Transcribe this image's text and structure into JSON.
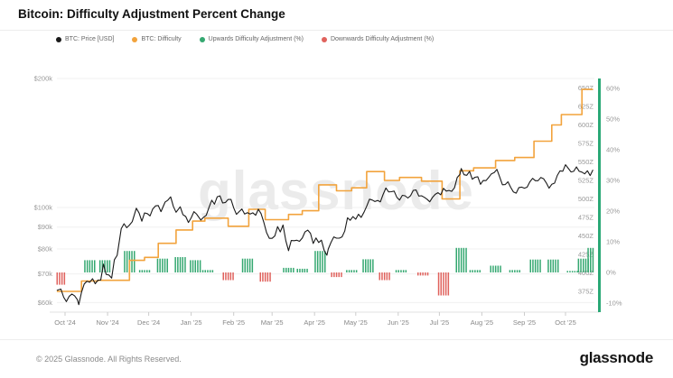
{
  "header": {
    "title": "Bitcoin: Difficulty Adjustment Percent Change"
  },
  "legend": {
    "items": [
      {
        "label": "BTC: Price [USD]",
        "color": "#1a1a1a"
      },
      {
        "label": "BTC: Difficulty",
        "color": "#f2a33c"
      },
      {
        "label": "Upwards Difficulty Adjustment (%)",
        "color": "#35a871"
      },
      {
        "label": "Downwards Difficulty Adjustment (%)",
        "color": "#e0625d"
      }
    ]
  },
  "watermark": "glassnode",
  "footer": {
    "copyright": "© 2025 Glassnode. All Rights Reserved.",
    "logo": "glassnode"
  },
  "chart_data": {
    "type": "line",
    "title": "Bitcoin: Difficulty Adjustment Percent Change",
    "x_axis": {
      "note": "days measured from 2024-10-01",
      "tick_labels": [
        "Oct '24",
        "Nov '24",
        "Dec '24",
        "Jan '25",
        "Feb '25",
        "Mar '25",
        "Apr '25",
        "May '25",
        "Jun '25",
        "Jul '25",
        "Aug '25",
        "Sep '25",
        "Oct '25"
      ],
      "tick_days": [
        0,
        31,
        61,
        92,
        123,
        151,
        182,
        212,
        243,
        273,
        304,
        335,
        365
      ]
    },
    "price_axis": {
      "side": "left",
      "scale": "log",
      "currency": "USD",
      "ticks": [
        {
          "value": 200000,
          "label": "$200k"
        },
        {
          "value": 100000,
          "label": "$100k"
        },
        {
          "value": 90000,
          "label": "$90k"
        },
        {
          "value": 80000,
          "label": "$80k"
        },
        {
          "value": 70000,
          "label": "$70k"
        },
        {
          "value": 60000,
          "label": "$60k"
        }
      ]
    },
    "difficulty_axis": {
      "side": "right-inner",
      "unit": "Z",
      "min": 375,
      "max": 650,
      "step": 25,
      "axis_line_color": "#2aa876",
      "label_suffix": "Z"
    },
    "percent_axis": {
      "side": "right-outer",
      "min": -10,
      "max": 60,
      "step": 10,
      "ticks": [
        60,
        50,
        40,
        30,
        20,
        10,
        0,
        -10
      ],
      "label_suffix": "%"
    },
    "series": [
      {
        "name": "BTC: Price [USD]",
        "type": "line",
        "color": "#1a1a1a",
        "points_day_priceK": [
          [
            -6,
            63.3
          ],
          [
            -3,
            63.8
          ],
          [
            -1,
            60.8
          ],
          [
            1,
            60.6
          ],
          [
            3,
            62.1
          ],
          [
            5,
            62.8
          ],
          [
            7,
            62.0
          ],
          [
            9,
            60.3
          ],
          [
            10,
            59.0
          ],
          [
            12,
            62.5
          ],
          [
            14,
            65.8
          ],
          [
            16,
            67.6
          ],
          [
            18,
            67.0
          ],
          [
            20,
            68.4
          ],
          [
            22,
            66.5
          ],
          [
            24,
            66.7
          ],
          [
            26,
            67.0
          ],
          [
            28,
            72.7
          ],
          [
            30,
            70.2
          ],
          [
            32,
            69.4
          ],
          [
            34,
            68.2
          ],
          [
            36,
            75.9
          ],
          [
            38,
            76.5
          ],
          [
            41,
            88.7
          ],
          [
            43,
            90.4
          ],
          [
            45,
            90.0
          ],
          [
            47,
            91.0
          ],
          [
            49,
            92.3
          ],
          [
            52,
            98.9
          ],
          [
            54,
            95.9
          ],
          [
            56,
            91.9
          ],
          [
            58,
            95.9
          ],
          [
            60,
            96.4
          ],
          [
            62,
            95.9
          ],
          [
            64,
            98.8
          ],
          [
            66,
            101.0
          ],
          [
            68,
            99.9
          ],
          [
            70,
            96.6
          ],
          [
            73,
            101.4
          ],
          [
            75,
            104.1
          ],
          [
            77,
            106.1
          ],
          [
            79,
            100.1
          ],
          [
            81,
            97.4
          ],
          [
            84,
            98.9
          ],
          [
            86,
            95.2
          ],
          [
            88,
            94.2
          ],
          [
            90,
            92.6
          ],
          [
            92,
            94.6
          ],
          [
            94,
            98.1
          ],
          [
            96,
            96.9
          ],
          [
            99,
            92.5
          ],
          [
            101,
            94.3
          ],
          [
            103,
            94.5
          ],
          [
            105,
            100.5
          ],
          [
            107,
            104.1
          ],
          [
            109,
            102.3
          ],
          [
            111,
            106.1
          ],
          [
            113,
            104.8
          ],
          [
            115,
            101.3
          ],
          [
            117,
            102.1
          ],
          [
            119,
            105.0
          ],
          [
            121,
            104.7
          ],
          [
            123,
            99.4
          ],
          [
            125,
            96.6
          ],
          [
            127,
            96.5
          ],
          [
            129,
            97.9
          ],
          [
            131,
            95.8
          ],
          [
            133,
            95.7
          ],
          [
            135,
            96.9
          ],
          [
            137,
            97.5
          ],
          [
            139,
            95.6
          ],
          [
            141,
            98.3
          ],
          [
            143,
            96.1
          ],
          [
            145,
            91.5
          ],
          [
            147,
            86.8
          ],
          [
            149,
            84.7
          ],
          [
            151,
            84.3
          ],
          [
            153,
            86.0
          ],
          [
            155,
            90.6
          ],
          [
            157,
            86.8
          ],
          [
            159,
            89.9
          ],
          [
            161,
            82.8
          ],
          [
            163,
            78.5
          ],
          [
            165,
            83.7
          ],
          [
            167,
            83.9
          ],
          [
            169,
            84.0
          ],
          [
            171,
            82.7
          ],
          [
            173,
            84.2
          ],
          [
            175,
            86.9
          ],
          [
            177,
            87.5
          ],
          [
            179,
            86.9
          ],
          [
            181,
            82.4
          ],
          [
            183,
            85.2
          ],
          [
            185,
            82.5
          ],
          [
            187,
            83.2
          ],
          [
            189,
            78.2
          ],
          [
            191,
            76.3
          ],
          [
            192,
            79.2
          ],
          [
            194,
            83.4
          ],
          [
            196,
            85.2
          ],
          [
            198,
            84.5
          ],
          [
            200,
            84.9
          ],
          [
            202,
            84.5
          ],
          [
            204,
            87.5
          ],
          [
            206,
            93.4
          ],
          [
            208,
            93.8
          ],
          [
            210,
            95.0
          ],
          [
            212,
            94.2
          ],
          [
            214,
            96.5
          ],
          [
            216,
            94.3
          ],
          [
            218,
            96.8
          ],
          [
            220,
            99.7
          ],
          [
            222,
            103.2
          ],
          [
            224,
            104.1
          ],
          [
            226,
            102.8
          ],
          [
            228,
            104.2
          ],
          [
            230,
            103.5
          ],
          [
            232,
            106.4
          ],
          [
            234,
            109.7
          ],
          [
            236,
            107.3
          ],
          [
            238,
            109.0
          ],
          [
            240,
            109.4
          ],
          [
            242,
            105.6
          ],
          [
            244,
            103.9
          ],
          [
            246,
            105.9
          ],
          [
            248,
            105.4
          ],
          [
            250,
            104.4
          ],
          [
            252,
            105.6
          ],
          [
            254,
            110.2
          ],
          [
            256,
            110.3
          ],
          [
            258,
            106.0
          ],
          [
            260,
            105.5
          ],
          [
            262,
            104.6
          ],
          [
            264,
            103.9
          ],
          [
            266,
            101.5
          ],
          [
            268,
            105.7
          ],
          [
            270,
            107.2
          ],
          [
            272,
            108.3
          ],
          [
            274,
            107.1
          ],
          [
            276,
            109.6
          ],
          [
            278,
            108.0
          ],
          [
            280,
            108.3
          ],
          [
            282,
            108.9
          ],
          [
            284,
            111.0
          ],
          [
            286,
            117.5
          ],
          [
            288,
            119.1
          ],
          [
            289,
            123.1
          ],
          [
            291,
            118.0
          ],
          [
            293,
            117.9
          ],
          [
            295,
            119.9
          ],
          [
            297,
            115.8
          ],
          [
            299,
            118.1
          ],
          [
            301,
            117.7
          ],
          [
            303,
            113.2
          ],
          [
            305,
            114.6
          ],
          [
            307,
            114.1
          ],
          [
            309,
            116.9
          ],
          [
            311,
            118.7
          ],
          [
            313,
            120.5
          ],
          [
            315,
            123.3
          ],
          [
            317,
            117.4
          ],
          [
            319,
            113.5
          ],
          [
            321,
            112.4
          ],
          [
            323,
            113.4
          ],
          [
            325,
            110.1
          ],
          [
            327,
            109.0
          ],
          [
            329,
            108.4
          ],
          [
            331,
            111.2
          ],
          [
            333,
            112.0
          ],
          [
            335,
            110.3
          ],
          [
            337,
            110.9
          ],
          [
            339,
            114.0
          ],
          [
            341,
            116.0
          ],
          [
            343,
            115.9
          ],
          [
            345,
            115.5
          ],
          [
            347,
            117.1
          ],
          [
            349,
            115.7
          ],
          [
            351,
            112.8
          ],
          [
            353,
            109.6
          ],
          [
            355,
            112.0
          ],
          [
            357,
            114.3
          ],
          [
            359,
            118.6
          ],
          [
            361,
            122.2
          ],
          [
            363,
            121.0
          ],
          [
            365,
            124.0
          ],
          [
            367,
            121.7
          ],
          [
            369,
            120.1
          ],
          [
            371,
            121.3
          ],
          [
            373,
            124.5
          ],
          [
            375,
            122.0
          ],
          [
            377,
            120.8
          ],
          [
            379,
            118.5
          ],
          [
            381,
            119.9
          ],
          [
            383,
            117.2
          ],
          [
            385,
            121.5
          ]
        ]
      },
      {
        "name": "BTC: Difficulty",
        "type": "step",
        "color": "#f2a33c",
        "points_day_Z": [
          [
            -6,
            375
          ],
          [
            12,
            389
          ],
          [
            24,
            390
          ],
          [
            47,
            417
          ],
          [
            58,
            421
          ],
          [
            68,
            440
          ],
          [
            81,
            458
          ],
          [
            93,
            470
          ],
          [
            102,
            474
          ],
          [
            119,
            463
          ],
          [
            134,
            486
          ],
          [
            146,
            472
          ],
          [
            163,
            479
          ],
          [
            173,
            484
          ],
          [
            185,
            519
          ],
          [
            198,
            511
          ],
          [
            209,
            515
          ],
          [
            220,
            537
          ],
          [
            233,
            525
          ],
          [
            244,
            529
          ],
          [
            260,
            524
          ],
          [
            275,
            500
          ],
          [
            288,
            538
          ],
          [
            298,
            542
          ],
          [
            314,
            552
          ],
          [
            328,
            556
          ],
          [
            342,
            578
          ],
          [
            355,
            600
          ],
          [
            362,
            614
          ],
          [
            377,
            648
          ],
          [
            385,
            648
          ]
        ]
      },
      {
        "name": "Upwards Difficulty Adjustment (%)",
        "type": "bar",
        "color": "#35a871",
        "direction": "up"
      },
      {
        "name": "Downwards Difficulty Adjustment (%)",
        "type": "bar",
        "color": "#e0625d",
        "direction": "down"
      }
    ],
    "adjustments_day_pct": [
      [
        -4,
        -4.0
      ],
      [
        18,
        4.0
      ],
      [
        29,
        4.0
      ],
      [
        47,
        7.0
      ],
      [
        58,
        0.8
      ],
      [
        71,
        4.5
      ],
      [
        84,
        5.0
      ],
      [
        95,
        4.0
      ],
      [
        104,
        0.8
      ],
      [
        119,
        -2.5
      ],
      [
        133,
        4.5
      ],
      [
        146,
        -3.0
      ],
      [
        163,
        1.5
      ],
      [
        173,
        1.2
      ],
      [
        186,
        7.0
      ],
      [
        198,
        -1.5
      ],
      [
        209,
        0.8
      ],
      [
        221,
        4.3
      ],
      [
        233,
        -2.5
      ],
      [
        245,
        0.8
      ],
      [
        261,
        -1.0
      ],
      [
        276,
        -7.5
      ],
      [
        289,
        8.0
      ],
      [
        299,
        0.8
      ],
      [
        314,
        2.2
      ],
      [
        328,
        0.8
      ],
      [
        343,
        4.2
      ],
      [
        356,
        4.2
      ],
      [
        370,
        0.5
      ],
      [
        378,
        4.5
      ],
      [
        385,
        8.0
      ]
    ],
    "layout_hints": {
      "grid": "horizontal light lines at price ticks",
      "legend_position": "top-left",
      "watermark": "glassnode center light gray"
    }
  }
}
